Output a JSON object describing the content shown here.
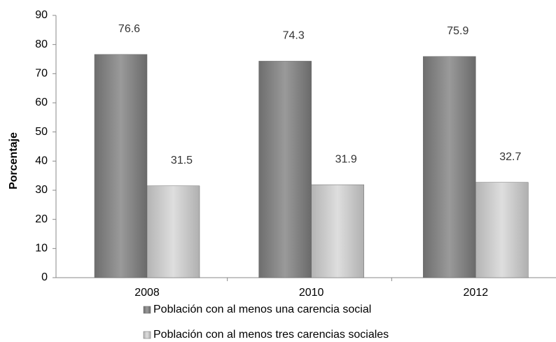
{
  "chart_data": {
    "type": "bar",
    "y_label": "Porcentaje",
    "categories": [
      "2008",
      "2010",
      "2012"
    ],
    "series": [
      {
        "name": "Población con al menos una carencia social",
        "color": "#808080",
        "values": [
          76.6,
          74.3,
          75.9
        ]
      },
      {
        "name": "Población con al menos tres carencias sociales",
        "color": "#c8c8c8",
        "values": [
          31.5,
          31.9,
          32.7
        ]
      }
    ],
    "ylim": [
      0,
      90
    ],
    "yticks": [
      0,
      10,
      20,
      30,
      40,
      50,
      60,
      70,
      80,
      90
    ],
    "data_labels": true
  }
}
